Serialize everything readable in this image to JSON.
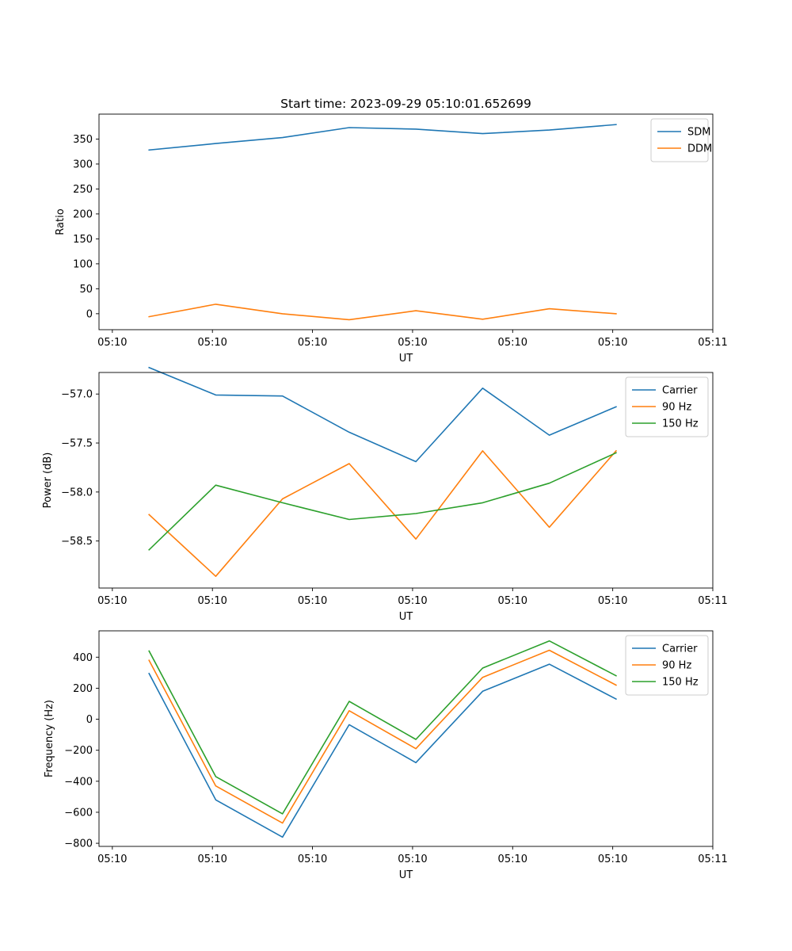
{
  "chart_data": {
    "title": "Start time: 2023-09-29 05:10:01.652699",
    "panels": [
      {
        "type": "line",
        "title": "Start time: 2023-09-29 05:10:01.652699",
        "xlabel": "UT",
        "ylabel": "Ratio",
        "x": [
          1,
          2,
          3,
          4,
          5,
          6,
          7,
          8
        ],
        "xlim": [
          0.25,
          9.45
        ],
        "x_ticks": [
          0.45,
          1.95,
          3.45,
          4.95,
          6.45,
          7.95,
          9.45
        ],
        "x_tick_labels": [
          "05:10",
          "05:10",
          "05:10",
          "05:10",
          "05:10",
          "05:10",
          "05:11"
        ],
        "ylim": [
          -32,
          400
        ],
        "y_ticks": [
          0,
          50,
          100,
          150,
          200,
          250,
          300,
          350
        ],
        "y_tick_labels": [
          "0",
          "50",
          "100",
          "150",
          "200",
          "250",
          "300",
          "350"
        ],
        "legend": "top-right",
        "series": [
          {
            "name": "SDM",
            "color": "#1f77b4",
            "values": [
              328,
              341,
              353,
              373,
              370,
              361,
              368,
              379
            ]
          },
          {
            "name": "DDM",
            "color": "#ff7f0e",
            "values": [
              -6,
              19,
              0,
              -12,
              6,
              -11,
              10,
              0
            ]
          }
        ]
      },
      {
        "type": "line",
        "xlabel": "UT",
        "ylabel": "Power (dB)",
        "x": [
          1,
          2,
          3,
          4,
          5,
          6,
          7,
          8
        ],
        "xlim": [
          0.25,
          9.45
        ],
        "x_ticks": [
          0.45,
          1.95,
          3.45,
          4.95,
          6.45,
          7.95,
          9.45
        ],
        "x_tick_labels": [
          "05:10",
          "05:10",
          "05:10",
          "05:10",
          "05:10",
          "05:10",
          "05:11"
        ],
        "ylim": [
          -58.98,
          -56.78
        ],
        "y_ticks": [
          -58.5,
          -58.0,
          -57.5,
          -57.0
        ],
        "y_tick_labels": [
          "−58.5",
          "−58.0",
          "−57.5",
          "−57.0"
        ],
        "legend": "top-right",
        "series": [
          {
            "name": "Carrier",
            "color": "#1f77b4",
            "values": [
              -56.73,
              -57.01,
              -57.02,
              -57.39,
              -57.69,
              -56.94,
              -57.42,
              -57.13
            ]
          },
          {
            "name": "90 Hz",
            "color": "#ff7f0e",
            "values": [
              -58.23,
              -58.86,
              -58.07,
              -57.71,
              -58.48,
              -57.58,
              -58.36,
              -57.58
            ]
          },
          {
            "name": "150 Hz",
            "color": "#2ca02c",
            "values": [
              -58.59,
              -57.93,
              -58.11,
              -58.28,
              -58.22,
              -58.11,
              -57.91,
              -57.6
            ]
          }
        ]
      },
      {
        "type": "line",
        "xlabel": "UT",
        "ylabel": "Frequency (Hz)",
        "x": [
          1,
          2,
          3,
          4,
          5,
          6,
          7,
          8
        ],
        "xlim": [
          0.25,
          9.45
        ],
        "x_ticks": [
          0.45,
          1.95,
          3.45,
          4.95,
          6.45,
          7.95,
          9.45
        ],
        "x_tick_labels": [
          "05:10",
          "05:10",
          "05:10",
          "05:10",
          "05:10",
          "05:10",
          "05:11"
        ],
        "ylim": [
          -820,
          570
        ],
        "y_ticks": [
          -800,
          -600,
          -400,
          -200,
          0,
          200,
          400
        ],
        "y_tick_labels": [
          "−800",
          "−600",
          "−400",
          "−200",
          "0",
          "200",
          "400"
        ],
        "legend": "top-right",
        "series": [
          {
            "name": "Carrier",
            "color": "#1f77b4",
            "values": [
              295,
              -520,
              -760,
              -35,
              -280,
              180,
              355,
              130
            ]
          },
          {
            "name": "90 Hz",
            "color": "#ff7f0e",
            "values": [
              380,
              -430,
              -670,
              55,
              -190,
              270,
              445,
              220
            ]
          },
          {
            "name": "150 Hz",
            "color": "#2ca02c",
            "values": [
              440,
              -370,
              -610,
              115,
              -130,
              330,
              505,
              280
            ]
          }
        ]
      }
    ]
  }
}
